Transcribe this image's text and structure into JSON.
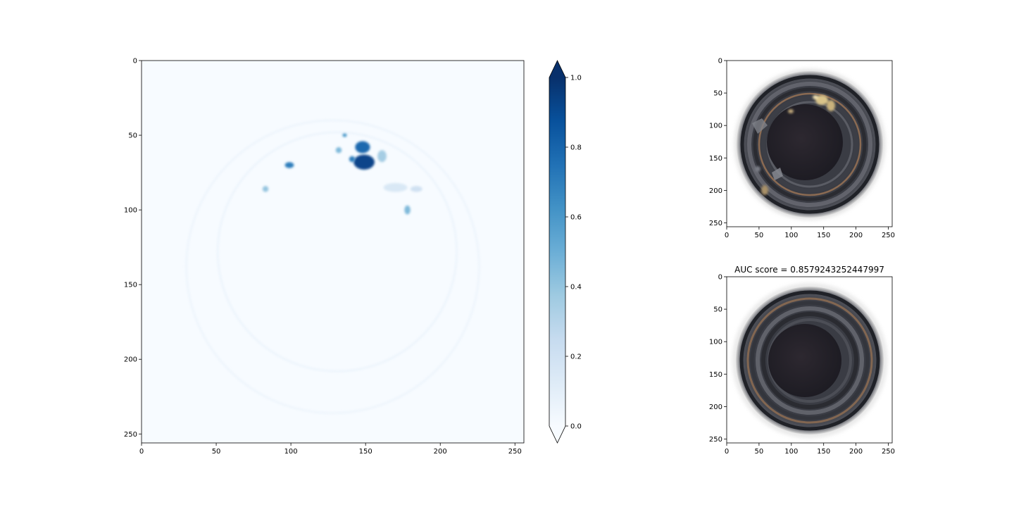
{
  "chart_data": [
    {
      "type": "heatmap",
      "panel": "anomaly-map",
      "colormap": "Blues",
      "xlim": [
        0,
        256
      ],
      "ylim": [
        256,
        0
      ],
      "xticks": [
        0,
        50,
        100,
        150,
        200,
        250
      ],
      "yticks": [
        0,
        50,
        100,
        150,
        200,
        250
      ],
      "xtick_labels": [
        "0",
        "50",
        "100",
        "150",
        "200",
        "250"
      ],
      "ytick_labels": [
        "0",
        "50",
        "100",
        "150",
        "200",
        "250"
      ],
      "colorbar": {
        "range": [
          0.0,
          1.0
        ],
        "ticks": [
          0.0,
          0.2,
          0.4,
          0.6,
          0.8,
          1.0
        ],
        "tick_labels": [
          "0.0",
          "0.2",
          "0.4",
          "0.6",
          "0.8",
          "1.0"
        ],
        "extend": "both"
      },
      "blobs": [
        {
          "x": 148,
          "y": 58,
          "rx": 5,
          "ry": 4,
          "value": 0.78
        },
        {
          "x": 149,
          "y": 68,
          "rx": 7,
          "ry": 5,
          "value": 0.92
        },
        {
          "x": 141,
          "y": 66,
          "rx": 2,
          "ry": 2,
          "value": 0.7
        },
        {
          "x": 136,
          "y": 50,
          "rx": 1.5,
          "ry": 1.2,
          "value": 0.6
        },
        {
          "x": 132,
          "y": 60,
          "rx": 2,
          "ry": 2,
          "value": 0.45
        },
        {
          "x": 99,
          "y": 70,
          "rx": 3,
          "ry": 2,
          "value": 0.7
        },
        {
          "x": 83,
          "y": 86,
          "rx": 2,
          "ry": 2,
          "value": 0.4
        },
        {
          "x": 178,
          "y": 100,
          "rx": 2,
          "ry": 3,
          "value": 0.45
        },
        {
          "x": 161,
          "y": 64,
          "rx": 3,
          "ry": 4,
          "value": 0.35
        },
        {
          "x": 170,
          "y": 85,
          "rx": 8,
          "ry": 3,
          "value": 0.15
        },
        {
          "x": 184,
          "y": 86,
          "rx": 4,
          "ry": 2,
          "value": 0.2
        }
      ],
      "rings": [
        {
          "cx": 131,
          "cy": 128,
          "r": 80,
          "value": 0.05
        },
        {
          "cx": 128,
          "cy": 138,
          "r": 98,
          "value": 0.04
        }
      ]
    },
    {
      "type": "image",
      "panel": "input-image",
      "xlim": [
        0,
        256
      ],
      "ylim": [
        256,
        0
      ],
      "xticks": [
        0,
        50,
        100,
        150,
        200,
        250
      ],
      "yticks": [
        0,
        50,
        100,
        150,
        200,
        250
      ],
      "xtick_labels": [
        "0",
        "50",
        "100",
        "150",
        "200",
        "250"
      ],
      "ytick_labels": [
        "0",
        "50",
        "100",
        "150",
        "200",
        "250"
      ]
    },
    {
      "type": "image",
      "panel": "reconstruction",
      "title": "AUC score = 0.8579243252447997",
      "xlim": [
        0,
        256
      ],
      "ylim": [
        256,
        0
      ],
      "xticks": [
        0,
        50,
        100,
        150,
        200,
        250
      ],
      "yticks": [
        0,
        50,
        100,
        150,
        200,
        250
      ],
      "xtick_labels": [
        "0",
        "50",
        "100",
        "150",
        "200",
        "250"
      ],
      "ytick_labels": [
        "0",
        "50",
        "100",
        "150",
        "200",
        "250"
      ]
    }
  ]
}
